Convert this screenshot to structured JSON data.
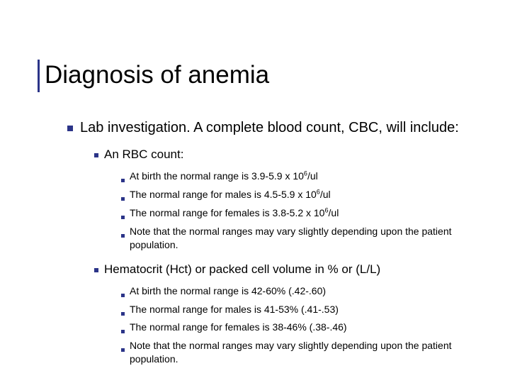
{
  "colors": {
    "accent": "#2b3488",
    "text": "#000000",
    "bg": "#ffffff"
  },
  "typography": {
    "title_fontsize": 35,
    "lvl1_fontsize": 20,
    "lvl2_fontsize": 17,
    "lvl3_fontsize": 14,
    "font_family": "Verdana"
  },
  "title": "Diagnosis of anemia",
  "lvl1": {
    "text": "Lab investigation. A complete blood count, CBC, will include:"
  },
  "sections": [
    {
      "heading": "An RBC count:",
      "items": [
        {
          "prefix": "At birth the normal range is 3.9-5.9 x 10",
          "sup": "6",
          "suffix": "/ul"
        },
        {
          "prefix": "The normal range for males is 4.5-5.9 x 10",
          "sup": "6",
          "suffix": "/ul"
        },
        {
          "prefix": "The normal range for females is 3.8-5.2 x 10",
          "sup": "6",
          "suffix": "/ul"
        },
        {
          "prefix": "Note that the normal ranges may vary slightly depending upon the patient population.",
          "sup": "",
          "suffix": ""
        }
      ]
    },
    {
      "heading": "Hematocrit (Hct) or packed cell volume in % or (L/L)",
      "items": [
        {
          "prefix": "At birth the normal range is 42-60% (.42-.60)",
          "sup": "",
          "suffix": ""
        },
        {
          "prefix": "The normal range for males is 41-53% (.41-.53)",
          "sup": "",
          "suffix": ""
        },
        {
          "prefix": "The normal range for females is 38-46% (.38-.46)",
          "sup": "",
          "suffix": ""
        },
        {
          "prefix": "Note that the normal ranges may vary slightly depending upon the patient population.",
          "sup": "",
          "suffix": ""
        }
      ]
    }
  ]
}
